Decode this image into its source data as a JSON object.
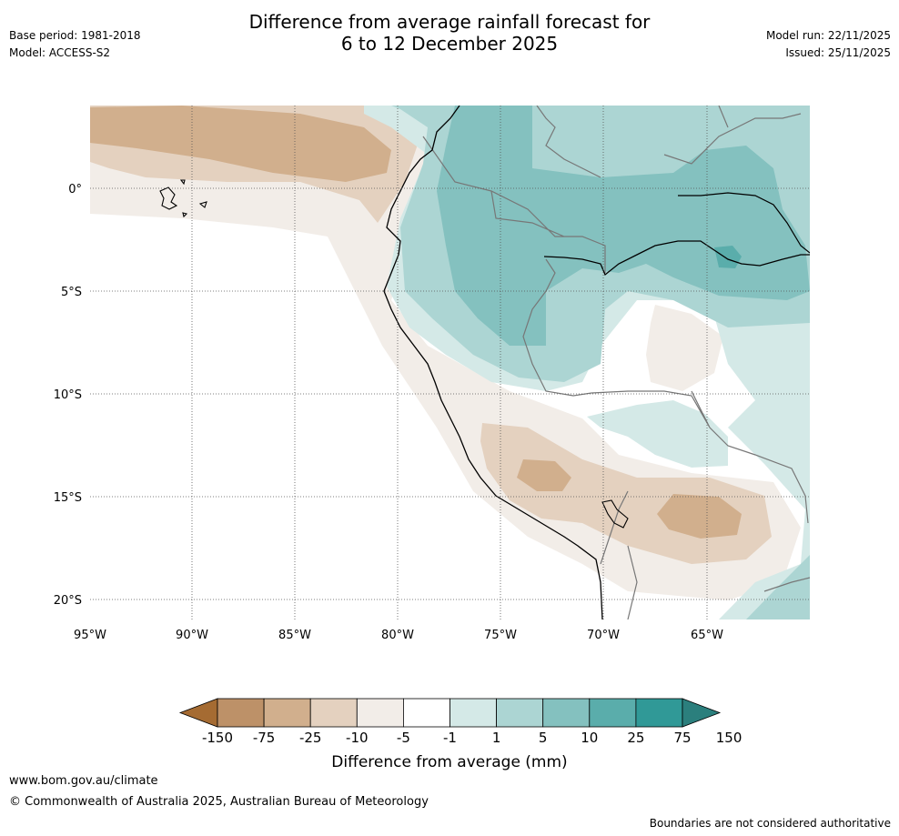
{
  "header": {
    "title_line1": "Difference from average rainfall forecast for",
    "title_line2": "6 to 12 December 2025",
    "base_period": "Base period: 1981-2018",
    "model": "Model: ACCESS-S2",
    "model_run": "Model run: 22/11/2025",
    "issued": "Issued: 25/11/2025"
  },
  "map": {
    "lat_labels": [
      "0°",
      "5°S",
      "10°S",
      "15°S",
      "20°S"
    ],
    "lon_labels": [
      "95°W",
      "90°W",
      "85°W",
      "80°W",
      "75°W",
      "70°W",
      "65°W"
    ]
  },
  "colorbar": {
    "tick_labels": [
      "-150",
      "-75",
      "-25",
      "-10",
      "-5",
      "-1",
      "1",
      "5",
      "10",
      "25",
      "75",
      "150"
    ],
    "colors": [
      "#a56b32",
      "#bd9168",
      "#d1af8d",
      "#e4d1bf",
      "#f2ede8",
      "#ffffff",
      "#d4e9e7",
      "#acd5d3",
      "#84c1bf",
      "#5aadab",
      "#309997",
      "#2b7f7d"
    ],
    "label": "Difference from average (mm)"
  },
  "footer": {
    "website": "www.bom.gov.au/climate",
    "copyright": "© Commonwealth of Australia 2025, Australian Bureau of Meteorology",
    "note": "Boundaries are not considered authoritative"
  }
}
